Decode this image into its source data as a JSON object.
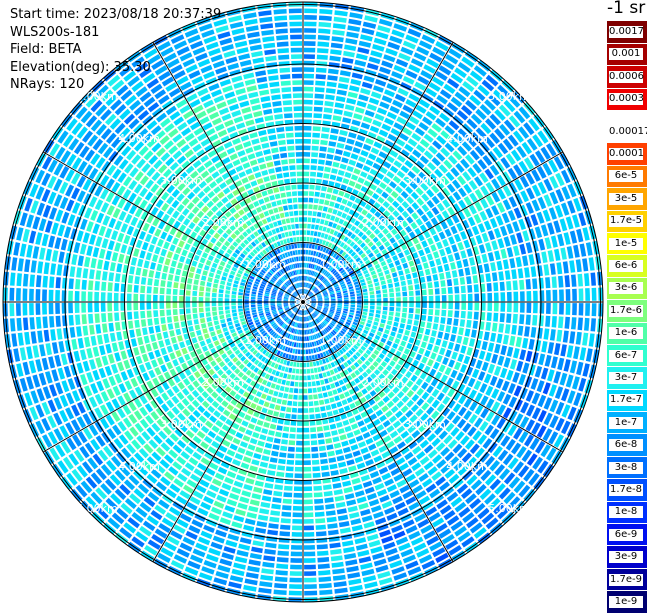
{
  "header": {
    "start_time": "Start time: 2023/08/18 20:37:39",
    "instrument": "WLS200s-181",
    "field": "Field: BETA",
    "elevation": "Elevation(deg): 35.30",
    "nrays": "NRays: 120"
  },
  "unit_label": "-1 sr",
  "rings": [
    {
      "label": "1.00km"
    },
    {
      "label": "2.00km"
    },
    {
      "label": "3.00km"
    },
    {
      "label": "4.00km"
    },
    {
      "label": "5.00km"
    }
  ],
  "radar": {
    "rays": 120,
    "range_max_km": 5.0,
    "spoke_spacing_deg": 30
  },
  "colorbar": {
    "top": [
      {
        "label": "0.0017",
        "color": "#7f0000"
      },
      {
        "label": "0.001",
        "color": "#a50000"
      },
      {
        "label": "0.0006",
        "color": "#cc0000"
      },
      {
        "label": "0.0003",
        "color": "#f00000"
      }
    ],
    "bottom": [
      {
        "label": "0.00017",
        "color": "#ffffff"
      },
      {
        "label": "0.0001",
        "color": "#ff4000"
      },
      {
        "label": "6e-5",
        "color": "#ff7a00"
      },
      {
        "label": "3e-5",
        "color": "#ffa500"
      },
      {
        "label": "1.7e-5",
        "color": "#ffd000"
      },
      {
        "label": "1e-5",
        "color": "#ffff00"
      },
      {
        "label": "6e-6",
        "color": "#d8ff20"
      },
      {
        "label": "3e-6",
        "color": "#a8ff50"
      },
      {
        "label": "1.7e-6",
        "color": "#7dff7d"
      },
      {
        "label": "1e-6",
        "color": "#50ffa8"
      },
      {
        "label": "6e-7",
        "color": "#30ffd0"
      },
      {
        "label": "3e-7",
        "color": "#20f0f0"
      },
      {
        "label": "1.7e-7",
        "color": "#00d8ff"
      },
      {
        "label": "1e-7",
        "color": "#00b0ff"
      },
      {
        "label": "6e-8",
        "color": "#0090ff"
      },
      {
        "label": "3e-8",
        "color": "#0070ff"
      },
      {
        "label": "1.7e-8",
        "color": "#0050ff"
      },
      {
        "label": "1e-8",
        "color": "#0030ff"
      },
      {
        "label": "6e-9",
        "color": "#0010f0"
      },
      {
        "label": "3e-9",
        "color": "#0000cc"
      },
      {
        "label": "1.7e-9",
        "color": "#00009a"
      },
      {
        "label": "1e-9",
        "color": "#000070"
      }
    ]
  }
}
